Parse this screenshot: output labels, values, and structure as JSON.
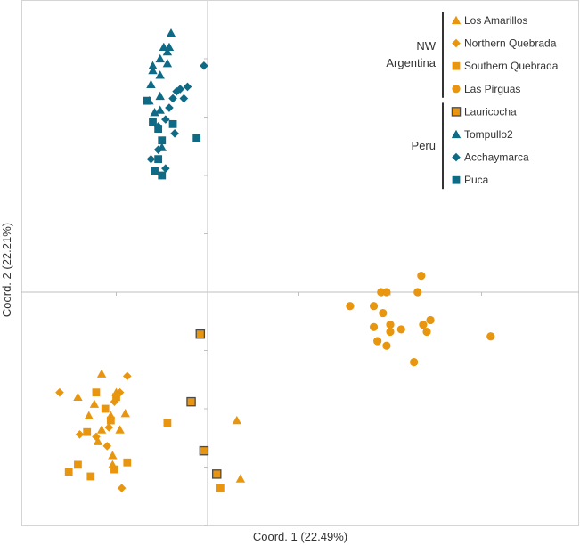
{
  "chart_data": {
    "type": "scatter",
    "title": "",
    "xlabel": "Coord. 1 (22.49%)",
    "ylabel": "Coord. 2 (22.21%)",
    "xlim": [
      -1.0,
      1.6
    ],
    "ylim": [
      -1.0,
      1.25
    ],
    "grid": false,
    "legend_position": "top-right",
    "legend_groups": [
      {
        "label_lines": [
          "NW",
          "Argentina"
        ],
        "series": [
          "Los Amarillos",
          "Northern Quebrada",
          "Southern Quebrada",
          "Las Pirguas"
        ]
      },
      {
        "label_lines": [
          "Peru"
        ],
        "series": [
          "Lauricocha",
          "Tompullo2",
          "Acchaymarca",
          "Puca"
        ]
      }
    ],
    "series": [
      {
        "name": "Los Amarillos",
        "marker": "triangle",
        "color": "#E8960F",
        "outline": false,
        "points": [
          [
            -0.58,
            -0.35
          ],
          [
            -0.71,
            -0.45
          ],
          [
            -0.5,
            -0.43
          ],
          [
            -0.62,
            -0.48
          ],
          [
            -0.53,
            -0.53
          ],
          [
            -0.65,
            -0.53
          ],
          [
            -0.48,
            -0.59
          ],
          [
            -0.58,
            -0.59
          ],
          [
            -0.45,
            -0.52
          ],
          [
            -0.6,
            -0.64
          ],
          [
            -0.52,
            -0.74
          ],
          [
            -0.52,
            -0.7
          ],
          [
            0.16,
            -0.55
          ],
          [
            0.18,
            -0.8
          ]
        ]
      },
      {
        "name": "Northern Quebrada",
        "marker": "diamond",
        "color": "#E8960F",
        "outline": false,
        "points": [
          [
            -0.81,
            -0.43
          ],
          [
            -0.44,
            -0.36
          ],
          [
            -0.48,
            -0.43
          ],
          [
            -0.51,
            -0.47
          ],
          [
            -0.61,
            -0.62
          ],
          [
            -0.55,
            -0.66
          ],
          [
            -0.54,
            -0.58
          ],
          [
            -0.47,
            -0.84
          ],
          [
            -0.7,
            -0.61
          ]
        ]
      },
      {
        "name": "Southern Quebrada",
        "marker": "square",
        "color": "#E8960F",
        "outline": false,
        "points": [
          [
            -0.61,
            -0.43
          ],
          [
            -0.5,
            -0.45
          ],
          [
            -0.56,
            -0.5
          ],
          [
            -0.53,
            -0.55
          ],
          [
            -0.66,
            -0.6
          ],
          [
            -0.71,
            -0.74
          ],
          [
            -0.44,
            -0.73
          ],
          [
            -0.51,
            -0.76
          ],
          [
            -0.64,
            -0.79
          ],
          [
            -0.76,
            -0.77
          ],
          [
            -0.22,
            -0.56
          ],
          [
            0.07,
            -0.84
          ]
        ]
      },
      {
        "name": "Las Pirguas",
        "marker": "circle",
        "color": "#E8960F",
        "outline": false,
        "points": [
          [
            1.17,
            0.07
          ],
          [
            0.95,
            0.0
          ],
          [
            0.98,
            0.0
          ],
          [
            1.15,
            0.0
          ],
          [
            0.78,
            -0.06
          ],
          [
            0.91,
            -0.06
          ],
          [
            0.96,
            -0.09
          ],
          [
            1.22,
            -0.12
          ],
          [
            1.18,
            -0.14
          ],
          [
            1.0,
            -0.14
          ],
          [
            0.91,
            -0.15
          ],
          [
            1.0,
            -0.17
          ],
          [
            1.06,
            -0.16
          ],
          [
            1.2,
            -0.17
          ],
          [
            1.55,
            -0.19
          ],
          [
            0.93,
            -0.21
          ],
          [
            0.98,
            -0.23
          ],
          [
            1.13,
            -0.3
          ]
        ]
      },
      {
        "name": "Lauricocha",
        "marker": "square",
        "color": "#E8960F",
        "outline": true,
        "points": [
          [
            -0.04,
            -0.18
          ],
          [
            -0.09,
            -0.47
          ],
          [
            -0.02,
            -0.68
          ],
          [
            0.05,
            -0.78
          ]
        ]
      },
      {
        "name": "Tompullo2",
        "marker": "triangle",
        "color": "#0F6B85",
        "outline": false,
        "points": [
          [
            -0.2,
            1.11
          ],
          [
            -0.24,
            1.05
          ],
          [
            -0.21,
            1.05
          ],
          [
            -0.22,
            1.03
          ],
          [
            -0.26,
            1.0
          ],
          [
            -0.3,
            0.97
          ],
          [
            -0.22,
            0.98
          ],
          [
            -0.26,
            0.93
          ],
          [
            -0.3,
            0.95
          ],
          [
            -0.31,
            0.89
          ],
          [
            -0.26,
            0.84
          ],
          [
            -0.32,
            0.82
          ],
          [
            -0.26,
            0.78
          ],
          [
            -0.29,
            0.77
          ],
          [
            -0.25,
            0.62
          ]
        ]
      },
      {
        "name": "Acchaymarca",
        "marker": "diamond",
        "color": "#0F6B85",
        "outline": false,
        "points": [
          [
            -0.02,
            0.97
          ],
          [
            -0.11,
            0.88
          ],
          [
            -0.15,
            0.87
          ],
          [
            -0.17,
            0.86
          ],
          [
            -0.13,
            0.83
          ],
          [
            -0.19,
            0.83
          ],
          [
            -0.21,
            0.79
          ],
          [
            -0.23,
            0.74
          ],
          [
            -0.27,
            0.71
          ],
          [
            -0.18,
            0.68
          ],
          [
            -0.27,
            0.61
          ],
          [
            -0.23,
            0.53
          ],
          [
            -0.31,
            0.57
          ]
        ]
      },
      {
        "name": "Puca",
        "marker": "square",
        "color": "#0F6B85",
        "outline": false,
        "points": [
          [
            -0.33,
            0.82
          ],
          [
            -0.3,
            0.73
          ],
          [
            -0.27,
            0.7
          ],
          [
            -0.25,
            0.65
          ],
          [
            -0.19,
            0.72
          ],
          [
            -0.06,
            0.66
          ],
          [
            -0.27,
            0.57
          ],
          [
            -0.25,
            0.5
          ],
          [
            -0.29,
            0.52
          ]
        ]
      }
    ]
  }
}
